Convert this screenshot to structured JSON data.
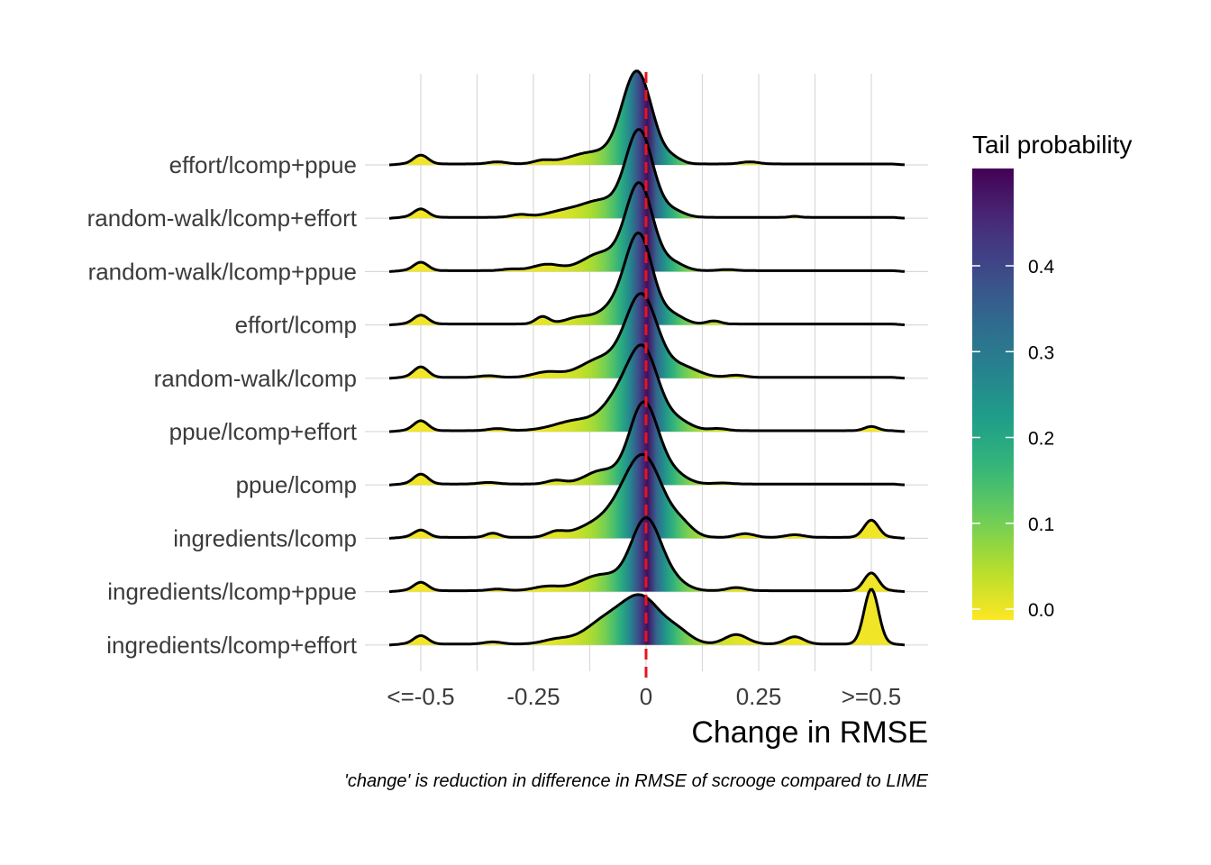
{
  "chart_data": {
    "type": "ridgeline",
    "xlabel": "Change in RMSE",
    "caption": "'change' is reduction in difference in RMSE of scrooge compared to LIME",
    "x_ticks": [
      {
        "value": -0.5,
        "label": "<=-0.5"
      },
      {
        "value": -0.25,
        "label": "-0.25"
      },
      {
        "value": 0,
        "label": "0"
      },
      {
        "value": 0.25,
        "label": "0.25"
      },
      {
        "value": 0.5,
        "label": ">=0.5"
      }
    ],
    "xlim": [
      -0.57,
      0.57
    ],
    "reference_line": {
      "x": 0,
      "color": "#e8141e",
      "style": "dashed"
    },
    "fill_legend": {
      "title": "Tail probability",
      "ticks": [
        {
          "value": 0.0,
          "label": "0.0"
        },
        {
          "value": 0.1,
          "label": "0.1"
        },
        {
          "value": 0.2,
          "label": "0.2"
        },
        {
          "value": 0.3,
          "label": "0.3"
        },
        {
          "value": 0.4,
          "label": "0.4"
        }
      ],
      "range": [
        0,
        0.5
      ],
      "colormap": "viridis"
    },
    "series": [
      {
        "name": "effort/lcomp+ppue",
        "peak_x": -0.02,
        "peak_height": 1.75,
        "peak_width": 0.033,
        "bumps": [
          [
            -0.5,
            0.17,
            0.016
          ],
          [
            -0.33,
            0.04,
            0.02
          ],
          [
            -0.23,
            0.06,
            0.02
          ],
          [
            -0.12,
            0.22,
            0.05
          ],
          [
            0.06,
            0.09,
            0.02
          ],
          [
            0.23,
            0.04,
            0.02
          ]
        ]
      },
      {
        "name": "random-walk/lcomp+effort",
        "peak_x": -0.015,
        "peak_height": 1.65,
        "peak_width": 0.03,
        "bumps": [
          [
            -0.5,
            0.16,
            0.016
          ],
          [
            -0.28,
            0.05,
            0.02
          ],
          [
            -0.18,
            0.12,
            0.04
          ],
          [
            -0.1,
            0.3,
            0.04
          ],
          [
            0.06,
            0.12,
            0.025
          ],
          [
            0.33,
            0.02,
            0.01
          ]
        ]
      },
      {
        "name": "random-walk/lcomp+ppue",
        "peak_x": -0.015,
        "peak_height": 1.65,
        "peak_width": 0.03,
        "bumps": [
          [
            -0.5,
            0.16,
            0.016
          ],
          [
            -0.3,
            0.03,
            0.02
          ],
          [
            -0.22,
            0.12,
            0.03
          ],
          [
            -0.1,
            0.33,
            0.04
          ],
          [
            0.06,
            0.14,
            0.025
          ],
          [
            0.18,
            0.02,
            0.02
          ]
        ]
      },
      {
        "name": "effort/lcomp",
        "peak_x": -0.015,
        "peak_height": 1.65,
        "peak_width": 0.03,
        "bumps": [
          [
            -0.5,
            0.17,
            0.016
          ],
          [
            -0.23,
            0.14,
            0.015
          ],
          [
            -0.15,
            0.12,
            0.03
          ],
          [
            -0.07,
            0.3,
            0.035
          ],
          [
            0.06,
            0.16,
            0.025
          ],
          [
            0.15,
            0.06,
            0.015
          ]
        ]
      },
      {
        "name": "random-walk/lcomp",
        "peak_x": -0.01,
        "peak_height": 1.55,
        "peak_width": 0.035,
        "bumps": [
          [
            -0.5,
            0.2,
            0.016
          ],
          [
            -0.35,
            0.03,
            0.02
          ],
          [
            -0.22,
            0.1,
            0.03
          ],
          [
            -0.1,
            0.35,
            0.045
          ],
          [
            0.08,
            0.2,
            0.035
          ],
          [
            0.2,
            0.04,
            0.02
          ]
        ]
      },
      {
        "name": "ppue/lcomp+effort",
        "peak_x": -0.005,
        "peak_height": 1.45,
        "peak_width": 0.033,
        "bumps": [
          [
            -0.5,
            0.19,
            0.016
          ],
          [
            -0.33,
            0.04,
            0.02
          ],
          [
            -0.15,
            0.2,
            0.05
          ],
          [
            -0.06,
            0.55,
            0.035
          ],
          [
            0.07,
            0.18,
            0.03
          ],
          [
            0.16,
            0.04,
            0.02
          ],
          [
            0.5,
            0.08,
            0.015
          ]
        ]
      },
      {
        "name": "ppue/lcomp",
        "peak_x": -0.005,
        "peak_height": 1.55,
        "peak_width": 0.032,
        "bumps": [
          [
            -0.5,
            0.19,
            0.016
          ],
          [
            -0.35,
            0.03,
            0.02
          ],
          [
            -0.2,
            0.07,
            0.02
          ],
          [
            -0.1,
            0.25,
            0.035
          ],
          [
            0.06,
            0.18,
            0.03
          ],
          [
            0.17,
            0.02,
            0.02
          ]
        ]
      },
      {
        "name": "ingredients/lcomp",
        "peak_x": 0.0,
        "peak_height": 1.35,
        "peak_width": 0.04,
        "bumps": [
          [
            -0.5,
            0.14,
            0.016
          ],
          [
            -0.34,
            0.08,
            0.015
          ],
          [
            -0.2,
            0.1,
            0.02
          ],
          [
            -0.12,
            0.2,
            0.04
          ],
          [
            -0.05,
            0.45,
            0.04
          ],
          [
            0.08,
            0.2,
            0.025
          ],
          [
            0.22,
            0.07,
            0.02
          ],
          [
            0.33,
            0.05,
            0.02
          ],
          [
            0.5,
            0.33,
            0.016
          ]
        ]
      },
      {
        "name": "ingredients/lcomp+ppue",
        "peak_x": 0.0,
        "peak_height": 1.35,
        "peak_width": 0.033,
        "bumps": [
          [
            -0.5,
            0.16,
            0.016
          ],
          [
            -0.33,
            0.03,
            0.02
          ],
          [
            -0.22,
            0.08,
            0.03
          ],
          [
            -0.1,
            0.3,
            0.045
          ],
          [
            0.06,
            0.16,
            0.03
          ],
          [
            0.2,
            0.06,
            0.02
          ],
          [
            0.5,
            0.34,
            0.016
          ]
        ]
      },
      {
        "name": "ingredients/lcomp+effort",
        "peak_x": -0.005,
        "peak_height": 0.75,
        "peak_width": 0.04,
        "bumps": [
          [
            -0.5,
            0.16,
            0.016
          ],
          [
            -0.34,
            0.04,
            0.02
          ],
          [
            -0.2,
            0.08,
            0.03
          ],
          [
            -0.08,
            0.5,
            0.05
          ],
          [
            0.07,
            0.22,
            0.03
          ],
          [
            0.2,
            0.18,
            0.025
          ],
          [
            0.33,
            0.14,
            0.02
          ],
          [
            0.5,
            1.05,
            0.016
          ]
        ]
      }
    ]
  }
}
